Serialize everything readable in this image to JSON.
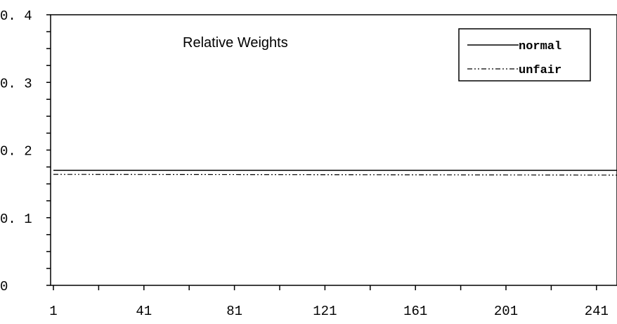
{
  "chart_data": {
    "type": "line",
    "title": "Relative Weights",
    "xlabel": "",
    "ylabel": "",
    "xlim": [
      1,
      252
    ],
    "ylim": [
      0,
      0.4
    ],
    "x_tick_values": [
      1,
      41,
      81,
      121,
      161,
      201,
      241
    ],
    "x_tick_labels": [
      "1",
      "41",
      "81",
      "121",
      "161",
      "201",
      "241"
    ],
    "y_tick_values": [
      0,
      0.1,
      0.2,
      0.3,
      0.4
    ],
    "y_tick_labels": [
      "0",
      "0. 1",
      "0. 2",
      "0. 3",
      "0. 4"
    ],
    "grid": false,
    "legend_position": "top-right",
    "series": [
      {
        "name": "normal",
        "style": "solid",
        "color": "#000000",
        "x": [
          1,
          252
        ],
        "values": [
          0.17,
          0.17
        ]
      },
      {
        "name": "unfair",
        "style": "dash-dot-dot",
        "color": "#000000",
        "x": [
          1,
          252
        ],
        "values": [
          0.164,
          0.163
        ]
      }
    ]
  }
}
